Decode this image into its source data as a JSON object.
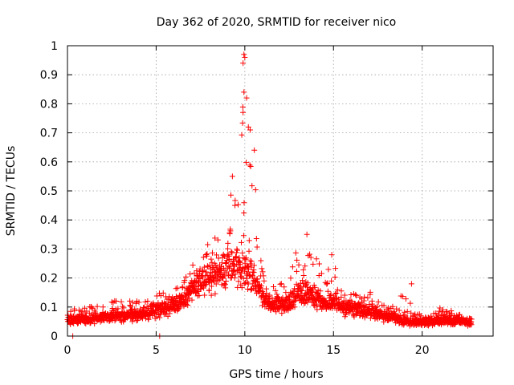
{
  "chart_data": {
    "type": "scatter",
    "title": "Day 362 of 2020, SRMTID for receiver nico",
    "xlabel": "GPS time / hours",
    "ylabel": "SRMTID / TECUs",
    "xlim": [
      0,
      24
    ],
    "ylim": [
      0,
      1
    ],
    "x_ticks": [
      0,
      5,
      10,
      15,
      20
    ],
    "x_tick_labels": [
      "0",
      "5",
      "10",
      "15",
      "20"
    ],
    "y_ticks": [
      0,
      0.1,
      0.2,
      0.3,
      0.4,
      0.5,
      0.6,
      0.7,
      0.8,
      0.9,
      1
    ],
    "y_tick_labels": [
      "0",
      "0.1",
      "0.2",
      "0.3",
      "0.4",
      "0.5",
      "0.6",
      "0.7",
      "0.8",
      "0.9",
      "1"
    ],
    "grid": true,
    "marker": "+",
    "series_color": "#ff0000",
    "series": [
      {
        "name": "SRMTID",
        "envelope_x": [
          0,
          1,
          2,
          3,
          4,
          5,
          5.5,
          6,
          6.5,
          7,
          7.5,
          8,
          8.5,
          9,
          9.2,
          9.5,
          9.8,
          10,
          10.2,
          10.5,
          10.8,
          11,
          11.5,
          12,
          12.5,
          13,
          13.5,
          14,
          14.5,
          15,
          15.5,
          16,
          16.5,
          17,
          17.5,
          18,
          18.5,
          19,
          19.5,
          20,
          20.5,
          21,
          21.5,
          22,
          22.5,
          22.8
        ],
        "envelope_upper": [
          0.09,
          0.1,
          0.11,
          0.13,
          0.12,
          0.14,
          0.17,
          0.16,
          0.18,
          0.26,
          0.27,
          0.33,
          0.35,
          0.4,
          0.55,
          0.5,
          0.7,
          0.98,
          0.83,
          0.72,
          0.36,
          0.25,
          0.2,
          0.18,
          0.2,
          0.33,
          0.35,
          0.3,
          0.22,
          0.28,
          0.14,
          0.16,
          0.15,
          0.16,
          0.12,
          0.11,
          0.1,
          0.18,
          0.08,
          0.08,
          0.07,
          0.1,
          0.09,
          0.08,
          0.07,
          0.06
        ],
        "base_level": [
          0.05,
          0.055,
          0.06,
          0.065,
          0.07,
          0.08,
          0.09,
          0.1,
          0.11,
          0.15,
          0.17,
          0.19,
          0.2,
          0.22,
          0.24,
          0.22,
          0.2,
          0.22,
          0.2,
          0.19,
          0.15,
          0.12,
          0.1,
          0.1,
          0.11,
          0.14,
          0.14,
          0.12,
          0.11,
          0.11,
          0.09,
          0.09,
          0.08,
          0.08,
          0.07,
          0.06,
          0.06,
          0.05,
          0.045,
          0.045,
          0.045,
          0.05,
          0.05,
          0.05,
          0.045,
          0.045
        ],
        "extra_points": [
          [
            0.3,
            0.0
          ],
          [
            5.2,
            0.0
          ],
          [
            9.95,
            0.97
          ],
          [
            9.9,
            0.94
          ],
          [
            10.0,
            0.96
          ],
          [
            9.95,
            0.84
          ],
          [
            9.9,
            0.77
          ],
          [
            10.2,
            0.72
          ],
          [
            10.3,
            0.71
          ],
          [
            10.1,
            0.82
          ],
          [
            9.3,
            0.55
          ],
          [
            13.5,
            0.35
          ],
          [
            14.9,
            0.28
          ],
          [
            19.4,
            0.18
          ]
        ]
      }
    ]
  }
}
